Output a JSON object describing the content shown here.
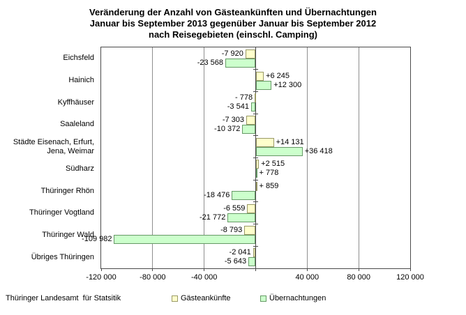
{
  "chart_data": {
    "type": "bar",
    "orientation": "horizontal",
    "title": "Veränderung der Anzahl von Gästeankünften und Übernachtungen Januar bis September 2013 gegenüber Januar bis September 2012 nach Reisegebieten (einschl. Camping)",
    "title_lines": [
      "Veränderung der Anzahl von Gästeankünften und Übernachtungen",
      "Januar bis September 2013 gegenüber Januar bis September 2012",
      "nach Reisegebieten (einschl. Camping)"
    ],
    "categories": [
      "Eichsfeld",
      "Hainich",
      "Kyffhäuser",
      "Saaleland",
      "Städte Eisenach, Erfurt, Jena, Weimar",
      "Südharz",
      "Thüringer Rhön",
      "Thüringer Vogtland",
      "Thüringer Wald",
      "Übriges Thüringen"
    ],
    "series": [
      {
        "name": "Gästeankünfte",
        "fill": "#ffffcc",
        "border": "#999966",
        "values": [
          -7920,
          6245,
          -778,
          -7303,
          14131,
          2515,
          859,
          -6559,
          -8793,
          -2041
        ],
        "labels": [
          "-7 920",
          "+6 245",
          "- 778",
          "-7 303",
          "+14 131",
          "+2 515",
          "+ 859",
          "-6 559",
          "-8 793",
          "-2 041"
        ]
      },
      {
        "name": "Übernachtungen",
        "fill": "#ccffcc",
        "border": "#669966",
        "values": [
          -23568,
          12300,
          -3541,
          -10372,
          36418,
          778,
          -18476,
          -21772,
          -109982,
          -5643
        ],
        "labels": [
          "-23 568",
          "+12 300",
          "-3 541",
          "-10 372",
          "+36 418",
          "+ 778",
          "-18 476",
          "-21 772",
          "-109 982",
          "-5 643"
        ]
      }
    ],
    "xlim": [
      -120000,
      120000
    ],
    "x_ticks": [
      -120000,
      -80000,
      -40000,
      0,
      40000,
      80000,
      120000
    ],
    "x_tick_labels": [
      "-120 000",
      "-80 000",
      "-40 000",
      "",
      "40 000",
      "80 000",
      "120 000"
    ],
    "grid": true,
    "legend_position": "bottom"
  },
  "footer": {
    "source": "Thüringer Landesamt  für Statsitik"
  },
  "colors": {
    "frame": "#4a4a4a",
    "grid": "#8f8f8f",
    "text": "#000000"
  }
}
